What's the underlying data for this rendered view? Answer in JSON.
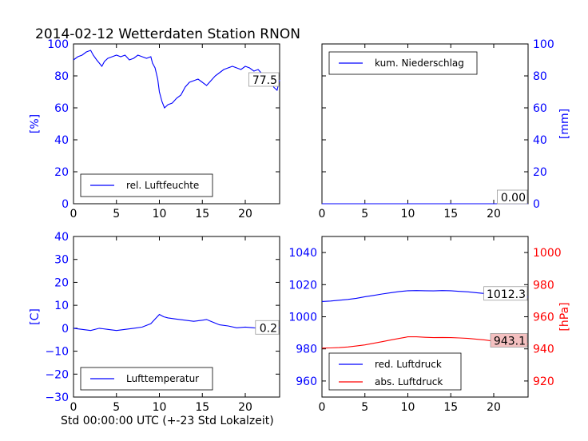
{
  "figure": {
    "title": "2014-02-12 Wetterdaten Station RNON",
    "xlabel": "Std 00:00:00 UTC (+-23 Std Lokalzeit)"
  },
  "colors": {
    "blue": "#0000ff",
    "red": "#ff0000",
    "black": "#000000",
    "redbox": "#f4c0c0"
  },
  "chart_data": [
    {
      "type": "line",
      "ylabel": "[%]",
      "xlim": [
        0,
        24
      ],
      "ylim": [
        0,
        100
      ],
      "xticks": [
        0,
        5,
        10,
        15,
        20
      ],
      "yticks": [
        0,
        20,
        40,
        60,
        80,
        100
      ],
      "yaxis_side": "left",
      "legend": "bottom-left",
      "series": [
        {
          "name": "rel. Luftfeuchte",
          "color": "#0000ff",
          "x": [
            0,
            0.5,
            1,
            1.5,
            2,
            2.3,
            2.7,
            3,
            3.3,
            3.6,
            4,
            4.5,
            5,
            5.5,
            6,
            6.5,
            7,
            7.5,
            8,
            8.5,
            9,
            9.2,
            9.5,
            9.8,
            10,
            10.3,
            10.6,
            11,
            11.5,
            12,
            12.5,
            13,
            13.5,
            14,
            14.5,
            15,
            15.5,
            16,
            16.5,
            17,
            17.5,
            18,
            18.5,
            19,
            19.5,
            20,
            20.5,
            21,
            21.5,
            22,
            22.5,
            23,
            23.3,
            23.7,
            24
          ],
          "y": [
            90,
            92,
            93,
            95,
            96,
            93,
            90,
            88,
            86,
            89,
            91,
            92,
            93,
            92,
            93,
            90,
            91,
            93,
            92,
            91,
            92,
            88,
            85,
            78,
            70,
            64,
            60,
            62,
            63,
            66,
            68,
            73,
            76,
            77,
            78,
            76,
            74,
            77,
            80,
            82,
            84,
            85,
            86,
            85,
            84,
            86,
            85,
            83,
            84,
            81,
            80,
            78,
            73,
            71,
            77.5
          ]
        }
      ],
      "value_label": "77.5",
      "value_label_style": "box-white"
    },
    {
      "type": "line",
      "ylabel": "[mm]",
      "xlim": [
        0,
        24
      ],
      "ylim": [
        0,
        100
      ],
      "xticks": [
        0,
        5,
        10,
        15,
        20
      ],
      "yticks": [
        0,
        20,
        40,
        60,
        80,
        100
      ],
      "yaxis_side": "right",
      "legend": "top-left",
      "series": [
        {
          "name": "kum. Niederschlag",
          "color": "#0000ff",
          "x": [
            0,
            24
          ],
          "y": [
            0,
            0
          ]
        }
      ],
      "value_label": "0.00",
      "value_label_style": "box-white"
    },
    {
      "type": "line",
      "ylabel": "[C]",
      "xlim": [
        0,
        24
      ],
      "ylim": [
        -30,
        40
      ],
      "xticks": [
        0,
        5,
        10,
        15,
        20
      ],
      "yticks": [
        -30,
        -20,
        -10,
        0,
        10,
        20,
        30,
        40
      ],
      "yaxis_side": "left",
      "legend": "bottom-left",
      "series": [
        {
          "name": "Lufttemperatur",
          "color": "#0000ff",
          "x": [
            0,
            1,
            2,
            3,
            4,
            5,
            6,
            7,
            8,
            9,
            9.5,
            10,
            10.5,
            11,
            12,
            13,
            14,
            15,
            15.5,
            16,
            17,
            18,
            19,
            20,
            21,
            22,
            23,
            24
          ],
          "y": [
            0,
            -0.5,
            -1,
            0,
            -0.5,
            -1,
            -0.5,
            0,
            0.5,
            2,
            4,
            6,
            5,
            4.5,
            4,
            3.5,
            3,
            3.5,
            3.8,
            3,
            1.5,
            1,
            0.2,
            0.5,
            0.2,
            0.1,
            0.2,
            0.2
          ]
        }
      ],
      "value_label": "0.2",
      "value_label_style": "box-white"
    },
    {
      "type": "line",
      "ylabel": "[hPa]",
      "xlim": [
        0,
        24
      ],
      "ylim": [
        950,
        1050
      ],
      "ylim_right": [
        910,
        1010
      ],
      "xticks": [
        0,
        5,
        10,
        15,
        20
      ],
      "yticks": [
        960,
        980,
        1000,
        1020,
        1040
      ],
      "yticks_right": [
        920,
        940,
        960,
        980,
        1000
      ],
      "yaxis_side": "both",
      "legend": "bottom-left",
      "series": [
        {
          "name": "red. Luftdruck",
          "color": "#0000ff",
          "axis": "left",
          "x": [
            0,
            1,
            2,
            3,
            4,
            5,
            6,
            7,
            8,
            9,
            10,
            11,
            12,
            13,
            14,
            15,
            16,
            17,
            18,
            19,
            20,
            21,
            22,
            23,
            24
          ],
          "y": [
            1009.5,
            1009.8,
            1010.3,
            1010.8,
            1011.5,
            1012.5,
            1013.3,
            1014.2,
            1015,
            1015.7,
            1016.2,
            1016.3,
            1016.2,
            1016.1,
            1016.3,
            1016.2,
            1015.8,
            1015.5,
            1015,
            1014.5,
            1013.8,
            1013.2,
            1012.8,
            1012.5,
            1012.3
          ]
        },
        {
          "name": "abs. Luftdruck",
          "color": "#ff0000",
          "axis": "right",
          "x": [
            0,
            1,
            2,
            3,
            4,
            5,
            6,
            7,
            8,
            9,
            10,
            11,
            12,
            13,
            14,
            15,
            16,
            17,
            18,
            19,
            20,
            21,
            22,
            23,
            24
          ],
          "y": [
            940.5,
            940.6,
            940.8,
            941.2,
            941.8,
            942.5,
            943.5,
            944.5,
            945.5,
            946.5,
            947.5,
            947.5,
            947.2,
            947,
            947.1,
            947,
            946.8,
            946.5,
            946,
            945.5,
            944.8,
            944.3,
            943.8,
            943.4,
            943.1
          ]
        }
      ],
      "value_labels": [
        {
          "text": "1012.3",
          "style": "box-white",
          "axis": "left",
          "y": 1012.3
        },
        {
          "text": "943.1",
          "style": "box-red",
          "axis": "right",
          "y": 943.1
        }
      ]
    }
  ]
}
